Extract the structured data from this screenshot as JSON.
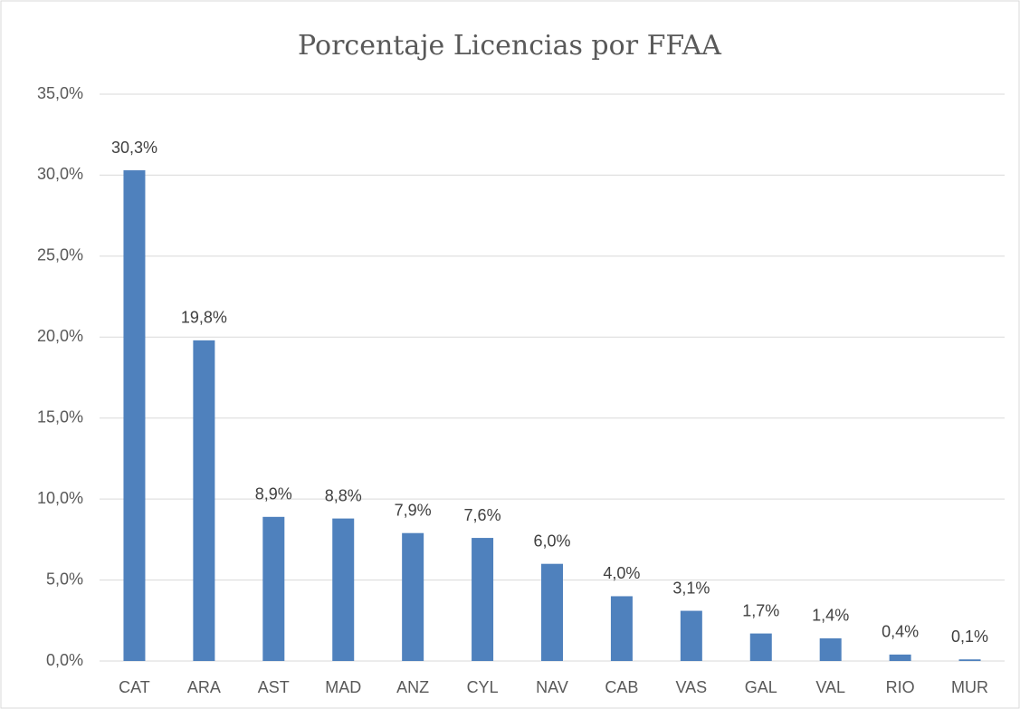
{
  "chart_data": {
    "type": "bar",
    "title": "Porcentaje Licencias por FFAA",
    "categories": [
      "CAT",
      "ARA",
      "AST",
      "MAD",
      "ANZ",
      "CYL",
      "NAV",
      "CAB",
      "VAS",
      "GAL",
      "VAL",
      "RIO",
      "MUR"
    ],
    "values": [
      30.3,
      19.8,
      8.9,
      8.8,
      7.9,
      7.6,
      6.0,
      4.0,
      3.1,
      1.7,
      1.4,
      0.4,
      0.1
    ],
    "value_labels": [
      "30,3%",
      "19,8%",
      "8,9%",
      "8,8%",
      "7,9%",
      "7,6%",
      "6,0%",
      "4,0%",
      "3,1%",
      "1,7%",
      "1,4%",
      "0,4%",
      "0,1%"
    ],
    "color": "#4f81bd",
    "ylim": [
      0,
      35
    ],
    "yticks": [
      {
        "value": 0,
        "label": "0,0%"
      },
      {
        "value": 5,
        "label": "5,0%"
      },
      {
        "value": 10,
        "label": "10,0%"
      },
      {
        "value": 15,
        "label": "15,0%"
      },
      {
        "value": 20,
        "label": "20,0%"
      },
      {
        "value": 25,
        "label": "25,0%"
      },
      {
        "value": 30,
        "label": "30,0%"
      },
      {
        "value": 35,
        "label": "35,0%"
      }
    ],
    "grid": true
  }
}
